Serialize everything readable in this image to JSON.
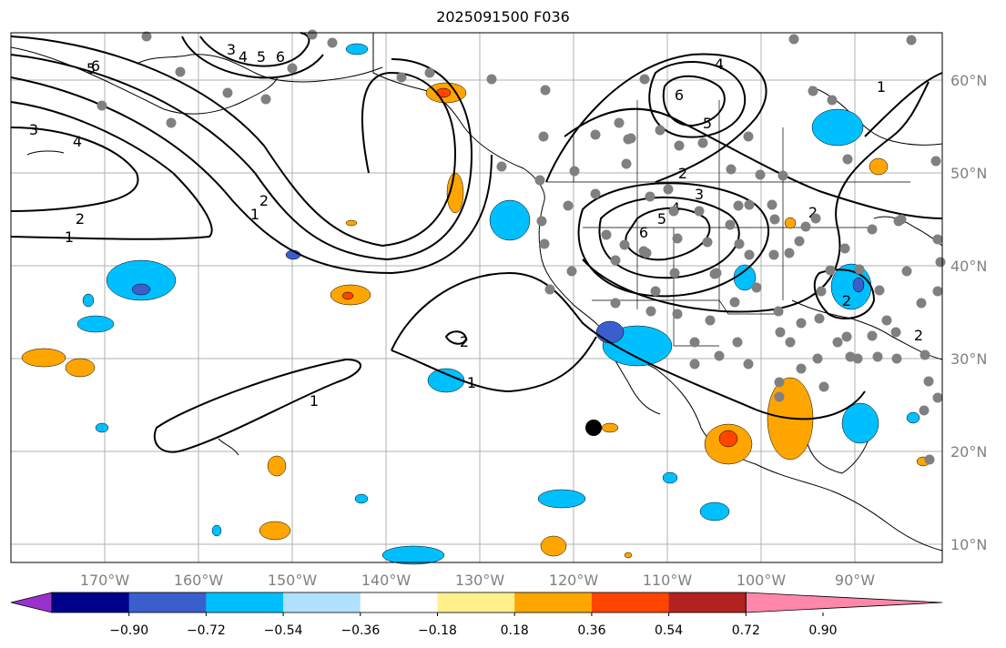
{
  "title": "2025091500 F036",
  "lon_labels": [
    "170°W",
    "160°W",
    "150°W",
    "140°W",
    "130°W",
    "120°W",
    "110°W",
    "100°W",
    "90°W"
  ],
  "lat_labels": [
    "60°N",
    "50°N",
    "40°N",
    "30°N",
    "20°N",
    "10°N"
  ],
  "colorbar": {
    "colors": [
      "#9932cc",
      "#00008b",
      "#3a5fcd",
      "#00bfff",
      "#b0e2ff",
      "#ffffff",
      "#fff08c",
      "#ffa500",
      "#ff4500",
      "#b22222",
      "#ff88aa"
    ],
    "tick_labels": [
      "−0.90",
      "−0.72",
      "−0.54",
      "−0.36",
      "−0.18",
      "0.18",
      "0.36",
      "0.54",
      "0.72",
      "0.90"
    ]
  },
  "contour_labels": [
    "1",
    "2",
    "3",
    "4",
    "5",
    "6"
  ],
  "colors": {
    "land_fill": "#ffffff",
    "coast": "#000000",
    "grid": "#b0b0b0",
    "station": "#808080"
  }
}
